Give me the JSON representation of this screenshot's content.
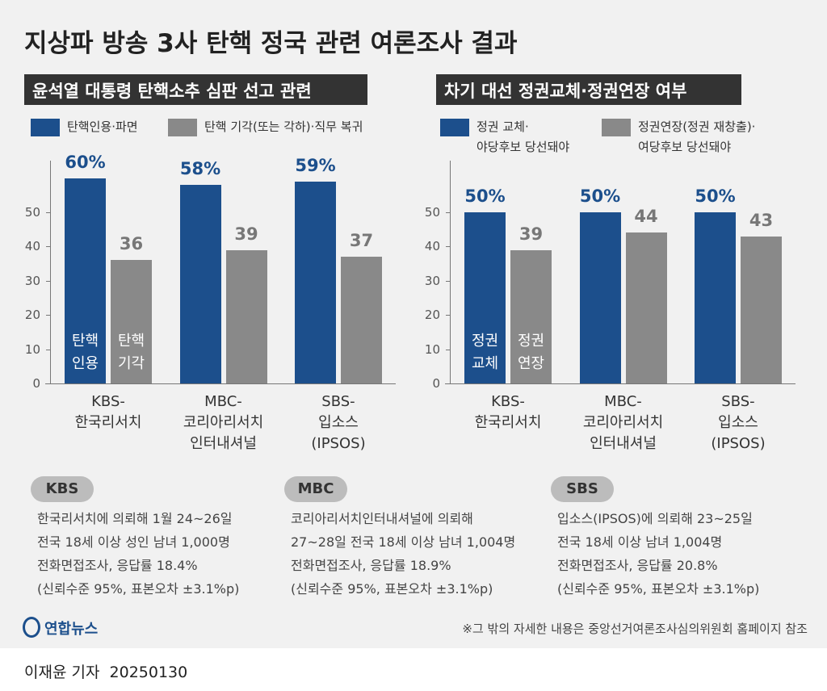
{
  "title": "지상파 방송 3사 탄핵 정국 관련 여론조사 결과",
  "chart_data": [
    {
      "type": "bar",
      "title": "윤석열 대통령 탄핵소추 심판 선고 관련",
      "categories": [
        "KBS-\n한국리서치",
        "MBC-\n코리아리서치\n인터내셔널",
        "SBS-\n입소스\n(IPSOS)"
      ],
      "series": [
        {
          "name": "탄핵인용·파면",
          "color": "#1c4f8c",
          "values": [
            60,
            58,
            59
          ],
          "value_labels": [
            "60%",
            "58%",
            "59%"
          ],
          "bar_label": "탄핵\n인용"
        },
        {
          "name": "탄핵 기각(또는 각하)·직무 복귀",
          "color": "#898989",
          "values": [
            36,
            39,
            37
          ],
          "bar_label": "탄핵\n기각"
        }
      ],
      "ylim": [
        0,
        65
      ],
      "yticks": [
        0,
        10,
        20,
        30,
        40,
        50
      ]
    },
    {
      "type": "bar",
      "title": "차기 대선 정권교체·정권연장 여부",
      "categories": [
        "KBS-\n한국리서치",
        "MBC-\n코리아리서치\n인터내셔널",
        "SBS-\n입소스\n(IPSOS)"
      ],
      "series": [
        {
          "name": "정권 교체·\n야당후보 당선돼야",
          "color": "#1c4f8c",
          "values": [
            50,
            50,
            50
          ],
          "value_labels": [
            "50%",
            "50%",
            "50%"
          ],
          "bar_label": "정권\n교체"
        },
        {
          "name": "정권연장(정권 재창출)·\n여당후보 당선돼야",
          "color": "#898989",
          "values": [
            39,
            44,
            43
          ],
          "bar_label": "정권\n연장"
        }
      ],
      "ylim": [
        0,
        65
      ],
      "yticks": [
        0,
        10,
        20,
        30,
        40,
        50
      ]
    }
  ],
  "notes": [
    {
      "label": "KBS",
      "text": "한국리서치에 의뢰해 1월 24~26일\n전국 18세 이상 성인 남녀 1,000명\n전화면접조사, 응답률 18.4%\n(신뢰수준 95%, 표본오차 ±3.1%p)"
    },
    {
      "label": "MBC",
      "text": "코리아리서치인터내셔널에 의뢰해\n27~28일 전국 18세 이상 남녀 1,004명\n전화면접조사, 응답률 18.9%\n(신뢰수준 95%, 표본오차 ±3.1%p)"
    },
    {
      "label": "SBS",
      "text": "입소스(IPSOS)에 의뢰해 23~25일\n전국 18세 이상 남녀 1,004명\n전화면접조사, 응답률 20.8%\n(신뢰수준 95%, 표본오차 ±3.1%p)"
    }
  ],
  "footnote": "※그 밖의 자세한 내용은 중앙선거여론조사심의위원회 홈페이지 참조",
  "logo": "연합뉴스",
  "byline": "이재윤 기자  20250130"
}
